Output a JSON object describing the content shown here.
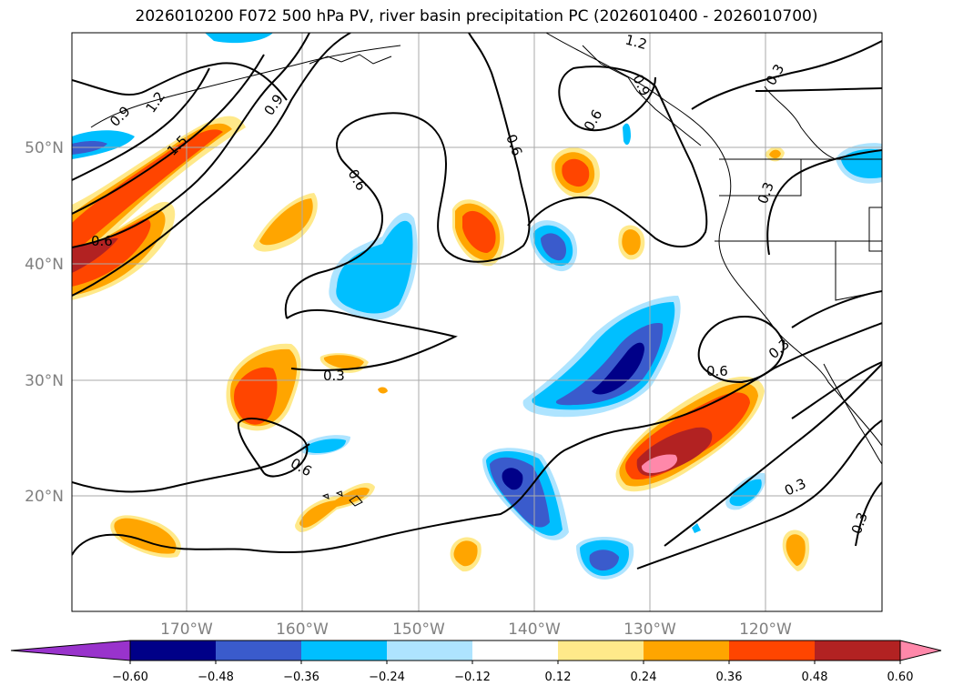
{
  "title": "2026010200 F072 500 hPa PV, river basin precipitation PC (2026010400 - 2026010700)",
  "lat_labels": [
    "50°N",
    "40°N",
    "30°N",
    "20°N"
  ],
  "lon_labels": [
    "170°W",
    "160°W",
    "150°W",
    "140°W",
    "130°W",
    "120°W"
  ],
  "contour_labels": [
    "0.3",
    "0.3",
    "0.3",
    "0.3",
    "0.3",
    "0.3",
    "0.6",
    "0.6",
    "0.6",
    "0.6",
    "0.6",
    "0.6",
    "0.9",
    "0.9",
    "0.9",
    "1.2",
    "1.2",
    "1.5"
  ],
  "colorbar": {
    "ticks": [
      "−0.60",
      "−0.48",
      "−0.36",
      "−0.24",
      "−0.12",
      "0.12",
      "0.24",
      "0.36",
      "0.48",
      "0.60"
    ],
    "colors": [
      "#9933cc",
      "#000088",
      "#3a5bcc",
      "#00bfff",
      "#aee4ff",
      "#ffffff",
      "#ffe98a",
      "#ffa500",
      "#ff4500",
      "#b22222",
      "#ff88aa"
    ]
  }
}
